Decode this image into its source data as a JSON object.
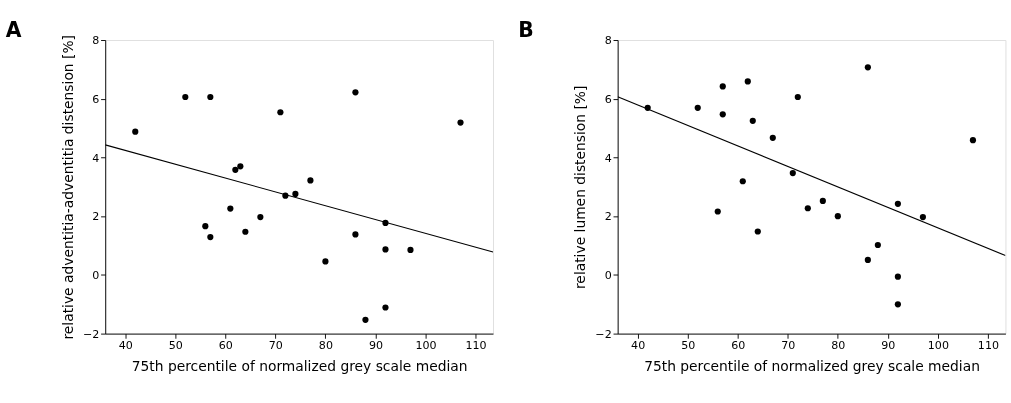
{
  "chart_data": [
    {
      "type": "scatter",
      "title": "A",
      "xlabel": "75th percentile of normalized grey scale median",
      "ylabel": "relative adventitia-adventitia distension [%]",
      "xlim": [
        36,
        113.5
      ],
      "ylim": [
        -2,
        8
      ],
      "xticks": [
        40,
        50,
        60,
        70,
        80,
        90,
        100,
        110
      ],
      "yticks": [
        -2,
        0,
        2,
        4,
        6,
        8
      ],
      "grid": false,
      "series": [
        {
          "color": "#000000",
          "marker": "circle",
          "x": [
            42,
            52,
            57,
            71,
            86,
            107,
            62,
            63,
            77,
            72,
            74,
            61,
            67,
            56,
            57,
            64,
            92,
            86,
            92,
            97,
            80,
            92,
            88
          ],
          "values": [
            4.88,
            6.06,
            6.06,
            5.54,
            6.22,
            5.19,
            3.58,
            3.7,
            3.22,
            2.7,
            2.76,
            2.26,
            1.97,
            1.66,
            1.29,
            1.47,
            1.77,
            1.38,
            0.87,
            0.85,
            0.46,
            -1.11,
            -1.53
          ]
        },
        {
          "type": "line",
          "color": "#000000",
          "x": [
            36,
            113.5
          ],
          "values": [
            4.43,
            0.78
          ]
        }
      ]
    },
    {
      "type": "scatter",
      "title": "B",
      "xlabel": "75th percentile of normalized grey scale median",
      "ylabel": "relative lumen distension [%]",
      "xlim": [
        36,
        113.5
      ],
      "ylim": [
        -2,
        8
      ],
      "xticks": [
        40,
        50,
        60,
        70,
        80,
        90,
        100,
        110
      ],
      "yticks": [
        -2,
        0,
        2,
        4,
        6,
        8
      ],
      "grid": false,
      "series": [
        {
          "color": "#000000",
          "marker": "circle",
          "x": [
            42,
            52,
            57,
            57,
            62,
            63,
            72,
            86,
            67,
            107,
            71,
            61,
            56,
            64,
            74,
            77,
            80,
            92,
            97,
            88,
            86,
            92,
            92
          ],
          "values": [
            5.69,
            5.69,
            6.42,
            5.47,
            6.59,
            5.25,
            6.06,
            7.07,
            4.67,
            4.59,
            3.47,
            3.19,
            2.16,
            1.48,
            2.27,
            2.52,
            2.0,
            2.42,
            1.97,
            1.02,
            0.51,
            -0.06,
            -1.0
          ]
        },
        {
          "type": "line",
          "color": "#000000",
          "x": [
            36,
            113.5
          ],
          "values": [
            6.07,
            0.66
          ]
        }
      ]
    }
  ]
}
